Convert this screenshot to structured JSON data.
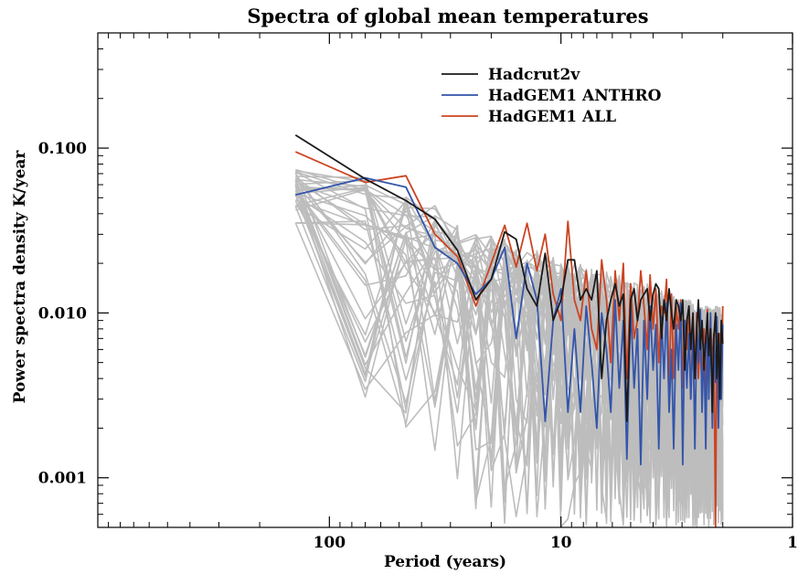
{
  "chart_data": {
    "type": "line",
    "title": "Spectra of global mean temperatures",
    "xlabel": "Period (years)",
    "ylabel": "Power spectra density K/year",
    "x_scale": "log",
    "y_scale": "log",
    "x_reversed": true,
    "xlim": [
      1000,
      1
    ],
    "ylim": [
      0.0005,
      0.5
    ],
    "x_ticks": [
      {
        "value": 100,
        "label": "100"
      },
      {
        "value": 10,
        "label": "10"
      },
      {
        "value": 1,
        "label": "1"
      }
    ],
    "y_ticks": [
      {
        "value": 0.1,
        "label": "0.100"
      },
      {
        "value": 0.01,
        "label": "0.010"
      },
      {
        "value": 0.001,
        "label": "0.001"
      }
    ],
    "legend_position": "top-right",
    "colors": {
      "Hadcrut2v": "#1a1a1a",
      "HadGEM1 ANTHRO": "#3355aa",
      "HadGEM1 ALL": "#cc4422",
      "ensemble": "#bdbdbd"
    },
    "series": [
      {
        "name": "Hadcrut2v",
        "x": [
          140.0,
          70.0,
          46.7,
          35.0,
          28.0,
          23.3,
          20.0,
          17.5,
          15.6,
          14.0,
          12.7,
          11.7,
          10.8,
          10.0,
          9.33,
          8.75,
          8.24,
          7.78,
          7.37,
          7.0,
          6.67,
          6.36,
          6.09,
          5.83,
          5.6,
          5.38,
          5.19,
          5.0,
          4.83,
          4.67,
          4.52,
          4.38,
          4.24,
          4.12,
          4.0,
          3.89,
          3.78,
          3.68,
          3.59,
          3.5,
          3.41,
          3.33,
          3.26,
          3.18,
          3.11,
          3.04,
          2.98,
          2.92,
          2.86,
          2.8,
          2.75,
          2.69,
          2.64,
          2.59,
          2.55,
          2.5,
          2.46,
          2.41,
          2.37,
          2.33,
          2.3,
          2.26,
          2.22,
          2.19,
          2.15,
          2.12,
          2.09,
          2.06,
          2.03,
          2.0
        ],
        "values": [
          0.12,
          0.065,
          0.048,
          0.037,
          0.024,
          0.012,
          0.016,
          0.031,
          0.028,
          0.014,
          0.011,
          0.023,
          0.009,
          0.012,
          0.021,
          0.021,
          0.012,
          0.014,
          0.012,
          0.018,
          0.004,
          0.009,
          0.012,
          0.015,
          0.011,
          0.013,
          0.0022,
          0.012,
          0.014,
          0.009,
          0.012,
          0.013,
          0.014,
          0.009,
          0.013,
          0.015,
          0.014,
          0.007,
          0.012,
          0.009,
          0.014,
          0.01,
          0.008,
          0.012,
          0.011,
          0.009,
          0.012,
          0.0045,
          0.009,
          0.011,
          0.006,
          0.01,
          0.004,
          0.008,
          0.012,
          0.006,
          0.009,
          0.0045,
          0.007,
          0.01,
          0.0055,
          0.008,
          0.0025,
          0.007,
          0.01,
          0.004,
          0.0075,
          0.003,
          0.009,
          0.0065
        ]
      },
      {
        "name": "HadGEM1 ANTHRO",
        "x": [
          140.0,
          70.0,
          46.7,
          35.0,
          28.0,
          23.3,
          20.0,
          17.5,
          15.6,
          14.0,
          12.7,
          11.7,
          10.8,
          10.0,
          9.33,
          8.75,
          8.24,
          7.78,
          7.37,
          7.0,
          6.67,
          6.36,
          6.09,
          5.83,
          5.6,
          5.38,
          5.19,
          5.0,
          4.83,
          4.67,
          4.52,
          4.38,
          4.24,
          4.12,
          4.0,
          3.89,
          3.78,
          3.68,
          3.59,
          3.5,
          3.41,
          3.33,
          3.26,
          3.18,
          3.11,
          3.04,
          2.98,
          2.92,
          2.86,
          2.8,
          2.75,
          2.69,
          2.64,
          2.59,
          2.55,
          2.5,
          2.46,
          2.41,
          2.37,
          2.33,
          2.3,
          2.26,
          2.22,
          2.19,
          2.15,
          2.12,
          2.09,
          2.06,
          2.03,
          2.0
        ],
        "values": [
          0.052,
          0.066,
          0.058,
          0.025,
          0.02,
          0.013,
          0.016,
          0.025,
          0.007,
          0.02,
          0.012,
          0.0022,
          0.009,
          0.014,
          0.0025,
          0.008,
          0.0025,
          0.011,
          0.005,
          0.002,
          0.01,
          0.006,
          0.0025,
          0.012,
          0.0035,
          0.009,
          0.0013,
          0.011,
          0.0035,
          0.008,
          0.0012,
          0.009,
          0.003,
          0.011,
          0.0045,
          0.0085,
          0.0015,
          0.0095,
          0.004,
          0.0115,
          0.0025,
          0.006,
          0.0015,
          0.0085,
          0.0045,
          0.0115,
          0.0012,
          0.009,
          0.0035,
          0.0075,
          0.003,
          0.008,
          0.0015,
          0.0085,
          0.005,
          0.0105,
          0.0025,
          0.0065,
          0.0015,
          0.008,
          0.003,
          0.01,
          0.002,
          0.007,
          0.0038,
          0.0095,
          0.002,
          0.0065,
          0.003,
          0.0085
        ]
      },
      {
        "name": "HadGEM1 ALL",
        "x": [
          140.0,
          70.0,
          46.7,
          35.0,
          28.0,
          23.3,
          20.0,
          17.5,
          15.6,
          14.0,
          12.7,
          11.7,
          10.8,
          10.0,
          9.33,
          8.75,
          8.24,
          7.78,
          7.37,
          7.0,
          6.67,
          6.36,
          6.09,
          5.83,
          5.6,
          5.38,
          5.19,
          5.0,
          4.83,
          4.67,
          4.52,
          4.38,
          4.24,
          4.12,
          4.0,
          3.89,
          3.78,
          3.68,
          3.59,
          3.5,
          3.41,
          3.33,
          3.26,
          3.18,
          3.11,
          3.04,
          2.98,
          2.92,
          2.86,
          2.8,
          2.75,
          2.69,
          2.64,
          2.59,
          2.55,
          2.5,
          2.46,
          2.41,
          2.37,
          2.33,
          2.3,
          2.26,
          2.22,
          2.19,
          2.15,
          2.12,
          2.09,
          2.06,
          2.03,
          2.0
        ],
        "values": [
          0.095,
          0.062,
          0.068,
          0.03,
          0.022,
          0.011,
          0.02,
          0.034,
          0.019,
          0.035,
          0.018,
          0.03,
          0.013,
          0.009,
          0.036,
          0.012,
          0.009,
          0.018,
          0.008,
          0.006,
          0.021,
          0.012,
          0.005,
          0.018,
          0.009,
          0.02,
          0.004,
          0.015,
          0.007,
          0.009,
          0.018,
          0.011,
          0.006,
          0.017,
          0.008,
          0.014,
          0.005,
          0.011,
          0.01,
          0.016,
          0.0035,
          0.013,
          0.004,
          0.011,
          0.008,
          0.012,
          0.0035,
          0.009,
          0.006,
          0.011,
          0.003,
          0.008,
          0.005,
          0.01,
          0.004,
          0.007,
          0.0035,
          0.008,
          0.0025,
          0.0105,
          0.004,
          0.0095,
          0.0045,
          0.0075,
          0.0005,
          0.009,
          0.0025,
          0.0075,
          0.003,
          0.011
        ]
      }
    ],
    "ensemble": {
      "count": 40,
      "x": [
        140.0,
        70.0,
        46.7,
        35.0,
        28.0,
        23.3,
        20.0,
        17.5,
        15.6,
        14.0,
        12.7,
        11.7,
        10.8,
        10.0,
        9.33,
        8.75,
        8.24,
        7.78,
        7.37,
        7.0,
        6.67,
        6.36,
        6.09,
        5.83,
        5.6,
        5.38,
        5.19,
        5.0,
        4.83,
        4.67,
        4.52,
        4.38,
        4.24,
        4.12,
        4.0,
        3.89,
        3.78,
        3.68,
        3.59,
        3.5,
        3.41,
        3.33,
        3.26,
        3.18,
        3.11,
        3.04,
        2.98,
        2.92,
        2.86,
        2.8,
        2.75,
        2.69,
        2.64,
        2.59,
        2.55,
        2.5,
        2.46,
        2.41,
        2.37,
        2.33,
        2.3,
        2.26,
        2.22,
        2.19,
        2.15,
        2.12,
        2.09,
        2.06,
        2.03,
        2.0
      ],
      "center": [
        0.055,
        0.035,
        0.028,
        0.022,
        0.02,
        0.018,
        0.017,
        0.016,
        0.015,
        0.014,
        0.013,
        0.012,
        0.012,
        0.011,
        0.011,
        0.01,
        0.01,
        0.01,
        0.0095,
        0.009,
        0.009,
        0.0085,
        0.0085,
        0.008,
        0.008,
        0.008,
        0.0075,
        0.0075,
        0.0075,
        0.007,
        0.007,
        0.007,
        0.007,
        0.0068,
        0.0068,
        0.0066,
        0.0066,
        0.0065,
        0.0065,
        0.0064,
        0.0064,
        0.0063,
        0.0063,
        0.0062,
        0.0062,
        0.0061,
        0.0061,
        0.006,
        0.006,
        0.006,
        0.0059,
        0.0059,
        0.0058,
        0.0058,
        0.0058,
        0.0057,
        0.0057,
        0.0057,
        0.0056,
        0.0056,
        0.0056,
        0.0055,
        0.0055,
        0.0055,
        0.0055,
        0.0054,
        0.0054,
        0.0054,
        0.0054,
        0.0053
      ],
      "upper": [
        0.075,
        0.07,
        0.055,
        0.045,
        0.035,
        0.03,
        0.03,
        0.028,
        0.026,
        0.025,
        0.024,
        0.023,
        0.022,
        0.021,
        0.021,
        0.02,
        0.02,
        0.019,
        0.019,
        0.018,
        0.018,
        0.018,
        0.017,
        0.017,
        0.017,
        0.016,
        0.016,
        0.016,
        0.016,
        0.015,
        0.015,
        0.015,
        0.015,
        0.014,
        0.014,
        0.014,
        0.014,
        0.014,
        0.013,
        0.013,
        0.013,
        0.013,
        0.013,
        0.013,
        0.012,
        0.012,
        0.012,
        0.012,
        0.012,
        0.012,
        0.012,
        0.012,
        0.011,
        0.011,
        0.011,
        0.011,
        0.011,
        0.011,
        0.011,
        0.011,
        0.011,
        0.011,
        0.011,
        0.011,
        0.011,
        0.011,
        0.011,
        0.011,
        0.011,
        0.011
      ],
      "lower": [
        0.035,
        0.003,
        0.002,
        0.001,
        0.0008,
        0.0006,
        0.0005,
        0.0005,
        0.0005,
        0.0005,
        0.0005,
        0.0005,
        0.0005,
        0.0005,
        0.0005,
        0.0005,
        0.0005,
        0.0005,
        0.0005,
        0.0005,
        0.0005,
        0.0005,
        0.0005,
        0.0005,
        0.0005,
        0.0005,
        0.0005,
        0.0005,
        0.0005,
        0.0005,
        0.0005,
        0.0005,
        0.0005,
        0.0005,
        0.0005,
        0.0005,
        0.0005,
        0.0005,
        0.0005,
        0.0005,
        0.0005,
        0.0005,
        0.0005,
        0.0005,
        0.0005,
        0.0005,
        0.0005,
        0.0005,
        0.0005,
        0.0005,
        0.0005,
        0.0005,
        0.0005,
        0.0005,
        0.0005,
        0.0005,
        0.0005,
        0.0005,
        0.0005,
        0.0005,
        0.0005,
        0.0005,
        0.0005,
        0.0005,
        0.0005,
        0.0005,
        0.0005,
        0.0005,
        0.0005,
        0.0005
      ]
    }
  }
}
